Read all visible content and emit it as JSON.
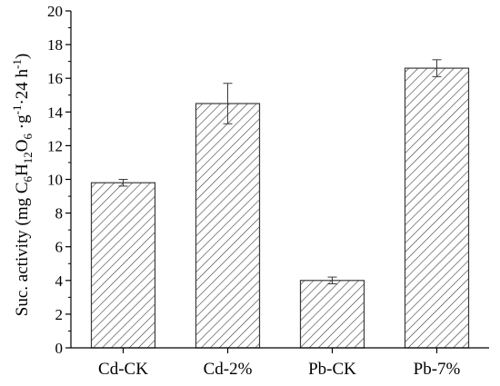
{
  "chart_data": {
    "type": "bar",
    "categories": [
      "Cd-CK",
      "Cd-2%",
      "Pb-CK",
      "Pb-7%"
    ],
    "values": [
      9.8,
      14.5,
      4.0,
      16.6
    ],
    "errors": [
      0.2,
      1.2,
      0.2,
      0.5
    ],
    "ylim": [
      0,
      20
    ],
    "yticks": [
      "0",
      "2",
      "4",
      "6",
      "8",
      "10",
      "12",
      "14",
      "16",
      "18",
      "20"
    ],
    "ylabel_parts": [
      "Suc. activity (mg C",
      "6",
      "H",
      "12",
      "O",
      "6",
      " ·g",
      "-1",
      "·24 h",
      "-1",
      ")"
    ],
    "bar_fill": "hatched-diagonal",
    "colors": {
      "bar_edge": "#3a3a3a",
      "hatch": "#3a3a3a",
      "axis": "#000000"
    },
    "grid": false
  }
}
